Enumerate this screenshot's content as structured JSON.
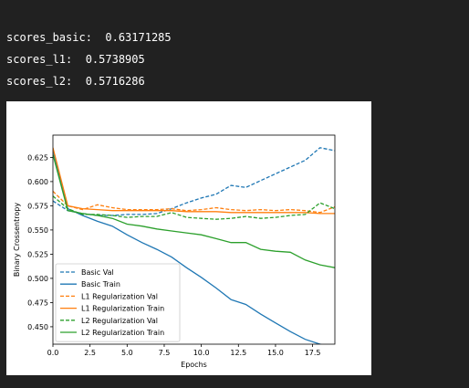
{
  "output": {
    "lines": [
      {
        "label": "scores_basic:",
        "value": "0.63171285"
      },
      {
        "label": "scores_l1:",
        "value": "0.5738905"
      },
      {
        "label": "scores_l2:",
        "value": "0.5716286"
      }
    ]
  },
  "chart_data": {
    "type": "line",
    "title": "",
    "xlabel": "Epochs",
    "ylabel": "Binary Crossentropy",
    "xlim": [
      0,
      19
    ],
    "ylim": [
      0.432,
      0.648
    ],
    "xticks": [
      "0.0",
      "2.5",
      "5.0",
      "7.5",
      "10.0",
      "12.5",
      "15.0",
      "17.5"
    ],
    "yticks": [
      "0.450",
      "0.475",
      "0.500",
      "0.525",
      "0.550",
      "0.575",
      "0.600",
      "0.625"
    ],
    "grid": false,
    "legend_position": "lower-left",
    "x": [
      0,
      1,
      2,
      3,
      4,
      5,
      6,
      7,
      8,
      9,
      10,
      11,
      12,
      13,
      14,
      15,
      16,
      17,
      18,
      19
    ],
    "series": [
      {
        "name": "Basic Val",
        "color": "#1f77b4",
        "dash": true,
        "values": [
          0.58,
          0.57,
          0.567,
          0.565,
          0.565,
          0.566,
          0.566,
          0.567,
          0.572,
          0.578,
          0.583,
          0.587,
          0.596,
          0.594,
          0.601,
          0.608,
          0.615,
          0.622,
          0.635,
          0.632
        ]
      },
      {
        "name": "Basic Train",
        "color": "#1f77b4",
        "dash": false,
        "values": [
          0.633,
          0.572,
          0.565,
          0.559,
          0.554,
          0.545,
          0.537,
          0.53,
          0.522,
          0.511,
          0.501,
          0.49,
          0.478,
          0.473,
          0.463,
          0.454,
          0.445,
          0.437,
          0.432,
          0.427
        ]
      },
      {
        "name": "L1 Regularization Val",
        "color": "#ff7f0e",
        "dash": true,
        "values": [
          0.59,
          0.575,
          0.571,
          0.576,
          0.573,
          0.571,
          0.571,
          0.571,
          0.572,
          0.57,
          0.571,
          0.573,
          0.571,
          0.57,
          0.571,
          0.57,
          0.571,
          0.57,
          0.568,
          0.574
        ]
      },
      {
        "name": "L1 Regularization Train",
        "color": "#ff7f0e",
        "dash": false,
        "values": [
          0.635,
          0.575,
          0.572,
          0.571,
          0.57,
          0.57,
          0.57,
          0.57,
          0.57,
          0.569,
          0.569,
          0.569,
          0.568,
          0.568,
          0.568,
          0.568,
          0.568,
          0.568,
          0.567,
          0.567
        ]
      },
      {
        "name": "L2 Regularization Val",
        "color": "#2ca02c",
        "dash": true,
        "values": [
          0.585,
          0.572,
          0.566,
          0.566,
          0.565,
          0.563,
          0.564,
          0.564,
          0.568,
          0.563,
          0.562,
          0.561,
          0.562,
          0.564,
          0.562,
          0.563,
          0.565,
          0.566,
          0.578,
          0.572
        ]
      },
      {
        "name": "L2 Regularization Train",
        "color": "#2ca02c",
        "dash": false,
        "values": [
          0.628,
          0.57,
          0.567,
          0.565,
          0.562,
          0.556,
          0.554,
          0.551,
          0.549,
          0.547,
          0.545,
          0.541,
          0.537,
          0.537,
          0.53,
          0.528,
          0.527,
          0.519,
          0.514,
          0.511
        ]
      }
    ]
  }
}
